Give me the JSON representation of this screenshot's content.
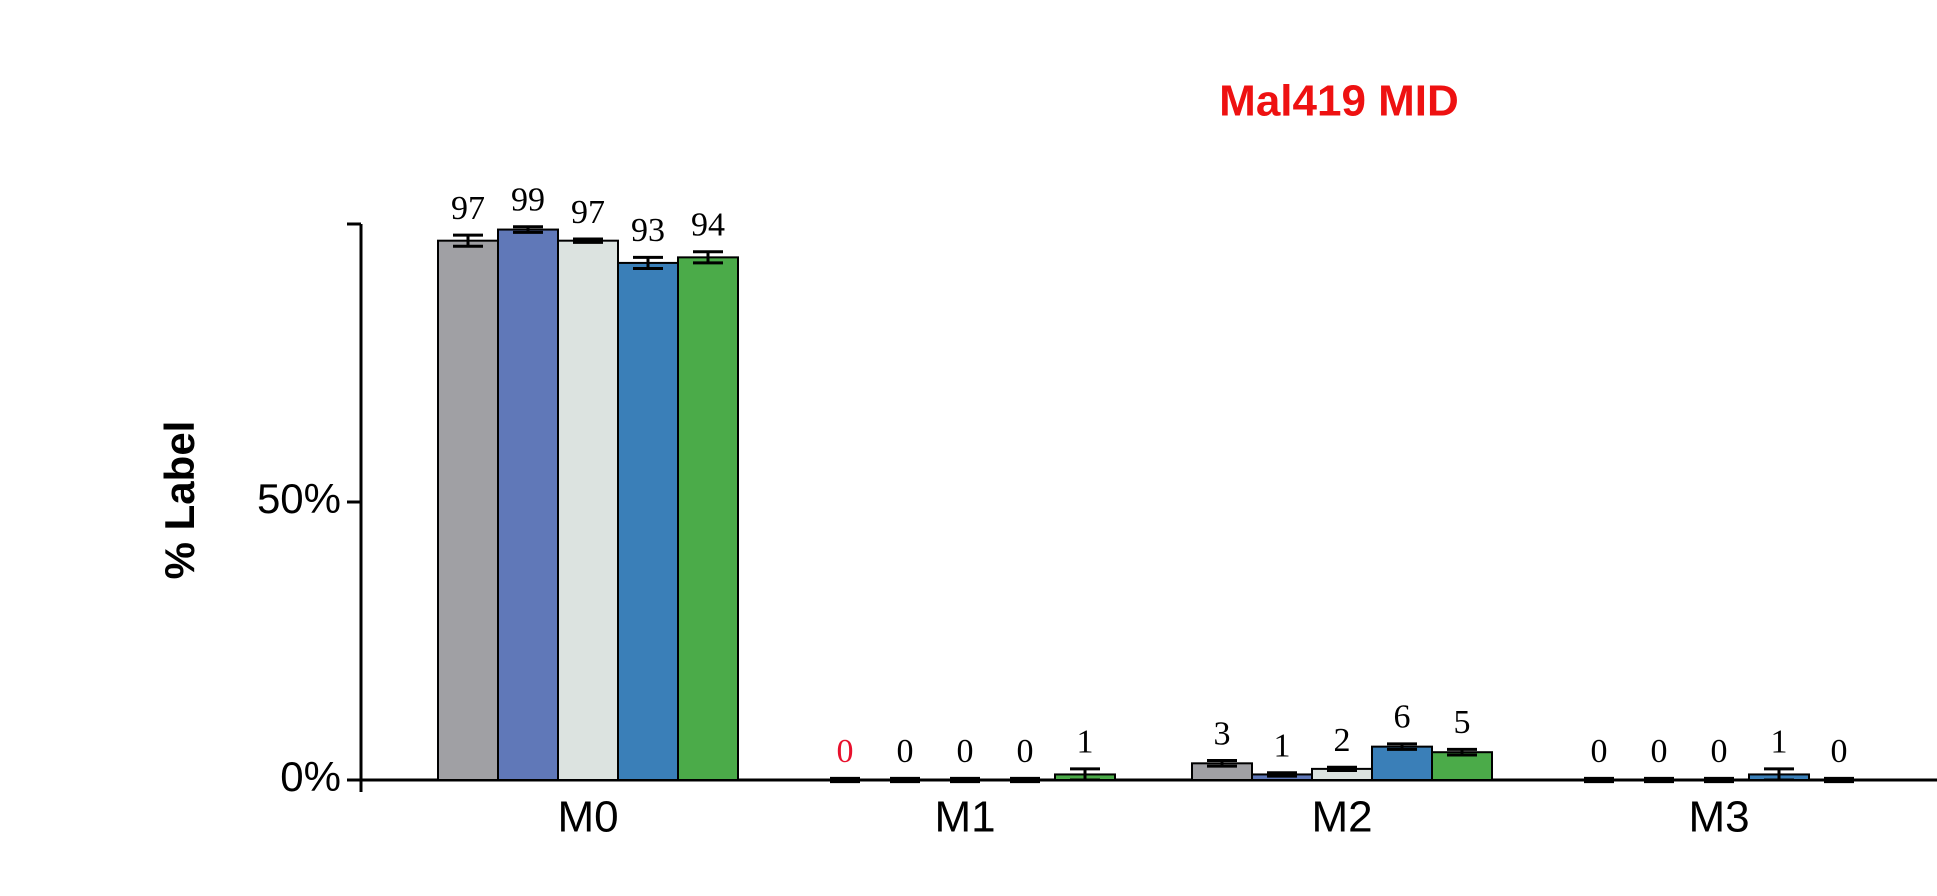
{
  "chart_data": {
    "type": "bar",
    "title": "Mal419 MID",
    "y_label": "% Label",
    "categories": [
      "M0",
      "M1",
      "M2",
      "M3"
    ],
    "series": [
      {
        "color": "#a0a0a4",
        "values": [
          97,
          0,
          3,
          0
        ],
        "errors": [
          1,
          0.3,
          0.5,
          0.3
        ],
        "label_colors": [
          null,
          "#e8112d",
          null,
          null
        ]
      },
      {
        "color": "#6078b8",
        "values": [
          99,
          0,
          1,
          0
        ],
        "errors": [
          0.5,
          0.3,
          0.3,
          0.3
        ]
      },
      {
        "color": "#dce3e0",
        "values": [
          97,
          0,
          2,
          0
        ],
        "errors": [
          0.3,
          0.3,
          0.3,
          0.3
        ]
      },
      {
        "color": "#3a7fb8",
        "values": [
          93,
          0,
          6,
          1
        ],
        "errors": [
          1,
          0.3,
          0.5,
          1
        ]
      },
      {
        "color": "#4bab49",
        "values": [
          94,
          1,
          5,
          0
        ],
        "errors": [
          1,
          1,
          0.5,
          0.3
        ]
      }
    ],
    "ylim": [
      0,
      100
    ],
    "yticks": [
      {
        "value": 0,
        "label": "0%"
      },
      {
        "value": 50,
        "label": "50%"
      },
      {
        "value": 100,
        "label": null
      }
    ]
  }
}
